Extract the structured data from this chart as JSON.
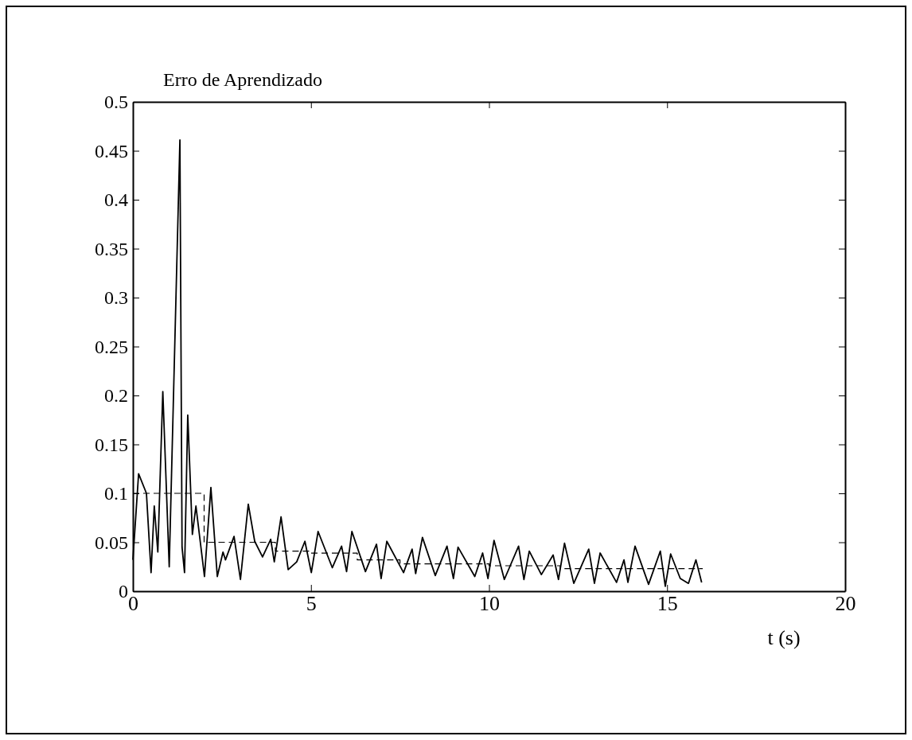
{
  "chart_data": {
    "type": "line",
    "title": "Erro de Aprendizado",
    "xlabel": "t (s)",
    "xlim": [
      0,
      20
    ],
    "xticks": [
      0,
      5,
      10,
      15,
      20
    ],
    "ylim": [
      0,
      0.5
    ],
    "yticks": [
      0,
      0.05,
      0.1,
      0.15,
      0.2,
      0.25,
      0.3,
      0.35,
      0.4,
      0.45,
      0.5
    ],
    "grid": false,
    "marker": "none",
    "series": [
      {
        "color": "#000000",
        "line_style": "solid",
        "x": [
          0,
          0.16,
          0.38,
          0.51,
          0.6,
          0.7,
          0.84,
          1.02,
          1.32,
          1.38,
          1.45,
          1.54,
          1.67,
          1.77,
          2.01,
          2.19,
          2.37,
          2.53,
          2.6,
          2.84,
          3.02,
          3.24,
          3.42,
          3.64,
          3.87,
          3.97,
          4.16,
          4.36,
          4.6,
          4.83,
          5.01,
          5.2,
          5.6,
          5.86,
          6.0,
          6.15,
          6.53,
          6.84,
          6.97,
          7.13,
          7.6,
          7.84,
          7.94,
          8.13,
          8.49,
          8.82,
          9.0,
          9.13,
          9.6,
          9.82,
          9.97,
          10.14,
          10.43,
          10.83,
          10.98,
          11.13,
          11.47,
          11.8,
          11.95,
          12.12,
          12.38,
          12.8,
          12.96,
          13.12,
          13.58,
          13.79,
          13.9,
          14.1,
          14.48,
          14.81,
          14.95,
          15.1,
          15.37,
          15.6,
          15.81,
          15.97
        ],
        "values": [
          0.032,
          0.12,
          0.1,
          0.019,
          0.087,
          0.04,
          0.204,
          0.025,
          0.461,
          0.045,
          0.019,
          0.18,
          0.058,
          0.087,
          0.015,
          0.106,
          0.015,
          0.04,
          0.032,
          0.056,
          0.012,
          0.089,
          0.051,
          0.035,
          0.053,
          0.03,
          0.076,
          0.022,
          0.03,
          0.051,
          0.019,
          0.061,
          0.024,
          0.046,
          0.02,
          0.061,
          0.02,
          0.048,
          0.013,
          0.051,
          0.019,
          0.043,
          0.018,
          0.055,
          0.016,
          0.046,
          0.013,
          0.045,
          0.015,
          0.039,
          0.013,
          0.052,
          0.012,
          0.046,
          0.012,
          0.041,
          0.017,
          0.037,
          0.012,
          0.049,
          0.008,
          0.043,
          0.008,
          0.039,
          0.009,
          0.032,
          0.009,
          0.046,
          0.007,
          0.041,
          0.005,
          0.038,
          0.013,
          0.008,
          0.032,
          0.009
        ]
      },
      {
        "type": "step",
        "color": "#000000",
        "line_style": "dashed",
        "x": [
          0,
          2,
          4,
          5,
          6.3,
          7.5,
          10,
          12,
          16
        ],
        "values": [
          0.1,
          0.05,
          0.041,
          0.039,
          0.032,
          0.028,
          0.026,
          0.023,
          0.023
        ]
      }
    ]
  }
}
